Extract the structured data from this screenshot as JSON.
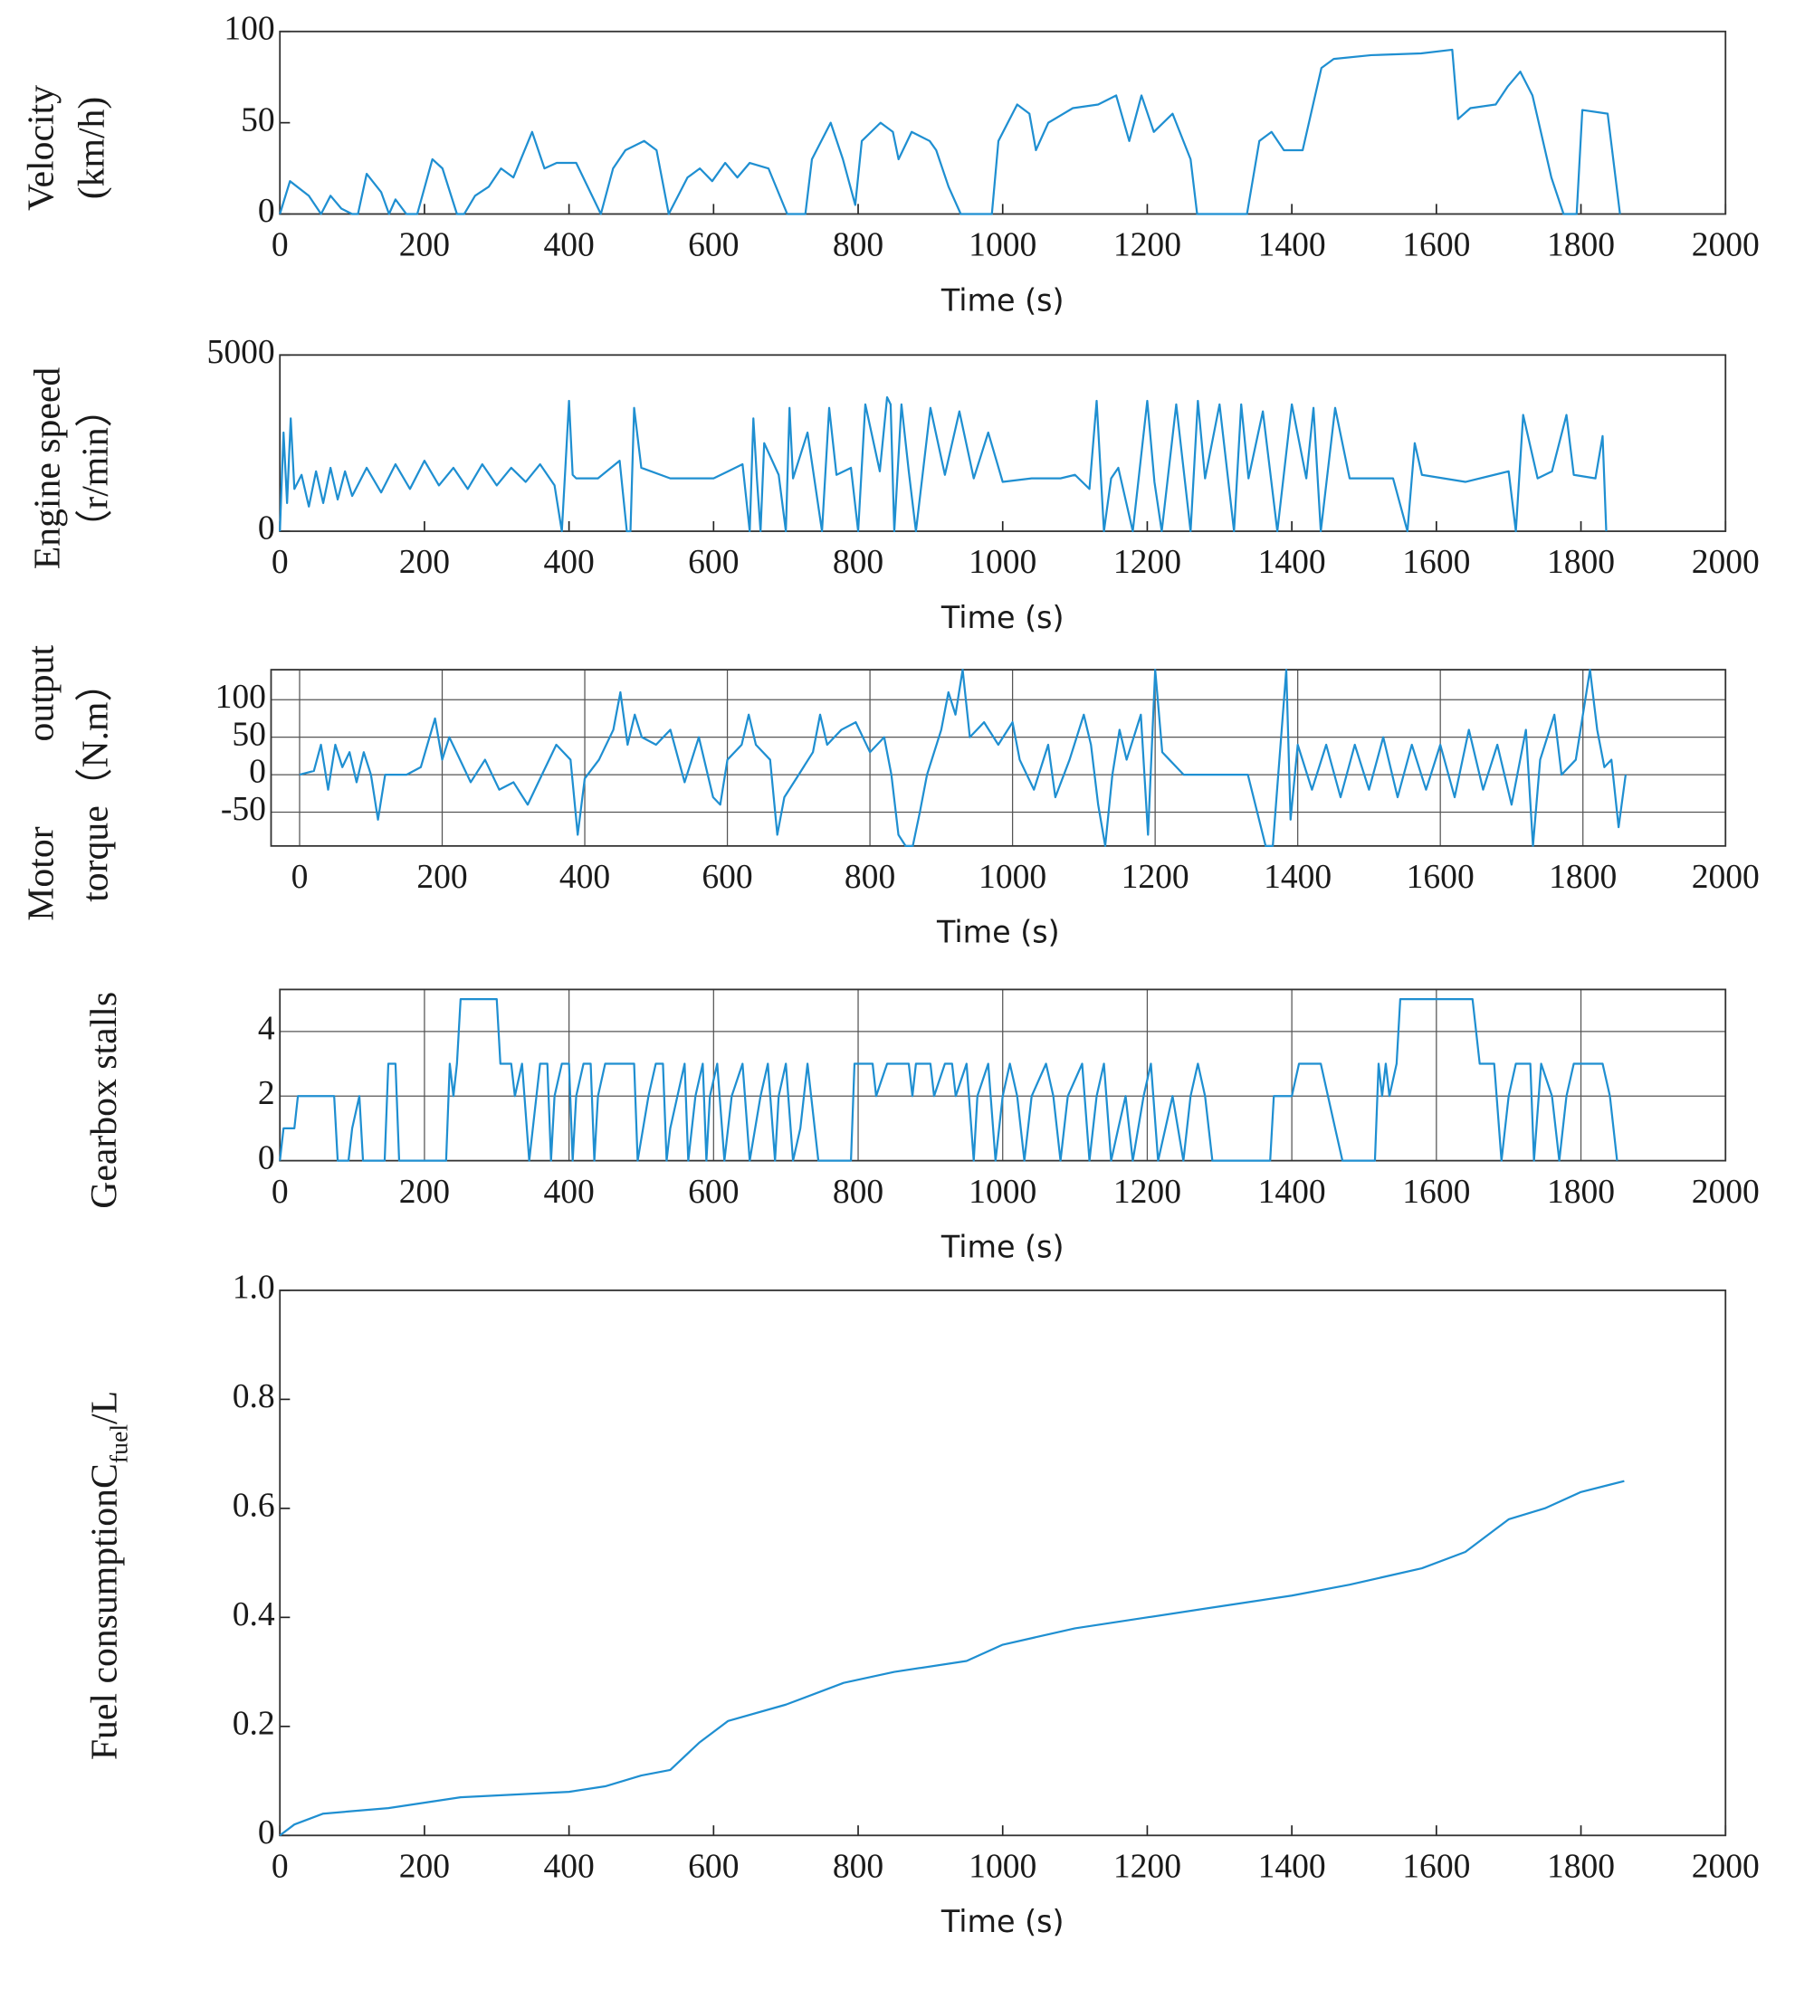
{
  "chart_data": [
    {
      "type": "line",
      "ylabel": [
        "Velocity",
        "(km/h)"
      ],
      "xlabel": "Time (s)",
      "color": "#1f8fd1",
      "grid": false,
      "xlim": [
        0,
        2000
      ],
      "xticks": [
        0,
        200,
        400,
        600,
        800,
        1000,
        1200,
        1400,
        1600,
        1800,
        2000
      ],
      "ylim": [
        0,
        100
      ],
      "yticks": [
        0,
        50,
        100
      ],
      "x": [
        0,
        14,
        40,
        57,
        70,
        85,
        100,
        108,
        120,
        140,
        151,
        160,
        175,
        190,
        211,
        225,
        245,
        255,
        270,
        289,
        306,
        323,
        349,
        366,
        383,
        410,
        444,
        461,
        478,
        504,
        521,
        538,
        564,
        581,
        598,
        616,
        633,
        650,
        676,
        702,
        727,
        736,
        762,
        779,
        796,
        805,
        831,
        848,
        856,
        874,
        899,
        908,
        925,
        942,
        985,
        994,
        1020,
        1037,
        1046,
        1063,
        1097,
        1132,
        1157,
        1175,
        1192,
        1209,
        1235,
        1260,
        1269,
        1338,
        1355,
        1372,
        1389,
        1415,
        1441,
        1458,
        1510,
        1579,
        1622,
        1630,
        1647,
        1682,
        1699,
        1716,
        1733,
        1759,
        1776,
        1794,
        1802,
        1837,
        1854
      ],
      "values": [
        0,
        18,
        10,
        0,
        10,
        3,
        0,
        0,
        22,
        12,
        0,
        8,
        0,
        0,
        30,
        25,
        0,
        0,
        10,
        15,
        25,
        20,
        45,
        25,
        28,
        28,
        0,
        25,
        35,
        40,
        35,
        0,
        20,
        25,
        18,
        28,
        20,
        28,
        25,
        0,
        0,
        30,
        50,
        30,
        5,
        40,
        50,
        45,
        30,
        45,
        40,
        35,
        15,
        0,
        0,
        40,
        60,
        55,
        35,
        50,
        58,
        60,
        65,
        40,
        65,
        45,
        55,
        30,
        0,
        0,
        40,
        45,
        35,
        35,
        80,
        85,
        87,
        88,
        90,
        52,
        58,
        60,
        70,
        78,
        65,
        20,
        0,
        0,
        57,
        55,
        0
      ]
    },
    {
      "type": "line",
      "ylabel": [
        "Engine speed",
        "（r/min）"
      ],
      "xlabel": "Time (s)",
      "color": "#1f8fd1",
      "grid": false,
      "xlim": [
        0,
        2000
      ],
      "xticks": [
        0,
        200,
        400,
        600,
        800,
        1000,
        1200,
        1400,
        1600,
        1800,
        2000
      ],
      "ylim": [
        0,
        5000
      ],
      "yticks": [
        0,
        5000
      ],
      "x": [
        0,
        5,
        10,
        15,
        20,
        30,
        40,
        50,
        60,
        70,
        80,
        90,
        100,
        120,
        140,
        160,
        180,
        200,
        220,
        240,
        260,
        280,
        300,
        320,
        340,
        360,
        380,
        390,
        395,
        400,
        405,
        410,
        440,
        470,
        480,
        485,
        490,
        500,
        540,
        600,
        620,
        640,
        650,
        655,
        660,
        665,
        670,
        690,
        700,
        705,
        710,
        730,
        750,
        760,
        770,
        790,
        800,
        810,
        830,
        840,
        845,
        850,
        860,
        870,
        880,
        900,
        920,
        940,
        960,
        980,
        1000,
        1040,
        1080,
        1100,
        1120,
        1130,
        1140,
        1150,
        1160,
        1180,
        1200,
        1210,
        1220,
        1240,
        1260,
        1270,
        1280,
        1300,
        1320,
        1330,
        1340,
        1360,
        1380,
        1400,
        1420,
        1430,
        1440,
        1460,
        1480,
        1540,
        1560,
        1570,
        1580,
        1640,
        1700,
        1710,
        1720,
        1740,
        1760,
        1780,
        1790,
        1820,
        1830,
        1835
      ],
      "values": [
        0,
        2800,
        800,
        3200,
        1200,
        1600,
        700,
        1700,
        800,
        1800,
        900,
        1700,
        1000,
        1800,
        1100,
        1900,
        1200,
        2000,
        1300,
        1800,
        1200,
        1900,
        1300,
        1800,
        1400,
        1900,
        1300,
        0,
        1800,
        3700,
        1600,
        1500,
        1500,
        2000,
        0,
        0,
        3500,
        1800,
        1500,
        1500,
        1700,
        1900,
        0,
        3200,
        1500,
        0,
        2500,
        1600,
        0,
        3500,
        1500,
        2800,
        0,
        3500,
        1600,
        1800,
        0,
        3600,
        1700,
        3800,
        3600,
        0,
        3600,
        1700,
        0,
        3500,
        1600,
        3400,
        1500,
        2800,
        1400,
        1500,
        1500,
        1600,
        1200,
        3700,
        0,
        1500,
        1800,
        0,
        3700,
        1400,
        0,
        3600,
        0,
        3700,
        1500,
        3600,
        0,
        3600,
        1500,
        3400,
        0,
        3600,
        1500,
        3500,
        0,
        3500,
        1500,
        1500,
        0,
        2500,
        1600,
        1400,
        1700,
        0,
        3300,
        1500,
        1700,
        3300,
        1600,
        1500,
        2700,
        0
      ]
    },
    {
      "type": "line",
      "ylabel": [
        "Motor output",
        "torque（N.m）"
      ],
      "xlabel": "Time (s)",
      "color": "#1f8fd1",
      "grid": true,
      "xlim": [
        -40,
        2000
      ],
      "xticks": [
        0,
        200,
        400,
        600,
        800,
        1000,
        1200,
        1400,
        1600,
        1800,
        2000
      ],
      "ylim": [
        -95,
        140
      ],
      "yticks": [
        -50,
        0,
        50,
        100
      ],
      "x": [
        0,
        20,
        30,
        40,
        50,
        60,
        70,
        80,
        90,
        100,
        110,
        120,
        150,
        170,
        190,
        200,
        210,
        220,
        240,
        260,
        280,
        300,
        320,
        340,
        360,
        380,
        390,
        400,
        420,
        440,
        450,
        460,
        470,
        480,
        500,
        520,
        540,
        560,
        580,
        590,
        600,
        620,
        630,
        640,
        660,
        670,
        680,
        700,
        720,
        730,
        740,
        760,
        780,
        800,
        820,
        830,
        840,
        850,
        860,
        870,
        880,
        900,
        910,
        920,
        930,
        940,
        960,
        980,
        1000,
        1010,
        1030,
        1050,
        1060,
        1080,
        1100,
        1110,
        1120,
        1130,
        1140,
        1150,
        1160,
        1180,
        1190,
        1200,
        1210,
        1220,
        1230,
        1240,
        1280,
        1330,
        1355,
        1365,
        1384,
        1390,
        1400,
        1420,
        1440,
        1460,
        1480,
        1500,
        1520,
        1540,
        1560,
        1580,
        1600,
        1620,
        1640,
        1660,
        1680,
        1700,
        1720,
        1730,
        1740,
        1760,
        1770,
        1790,
        1810,
        1820,
        1830,
        1840,
        1850,
        1860
      ],
      "values": [
        0,
        5,
        40,
        -20,
        40,
        10,
        30,
        -10,
        30,
        0,
        -60,
        0,
        0,
        10,
        75,
        20,
        50,
        30,
        -10,
        20,
        -20,
        -10,
        -40,
        0,
        40,
        20,
        -80,
        -5,
        20,
        60,
        110,
        40,
        80,
        50,
        40,
        60,
        -10,
        50,
        -30,
        -40,
        20,
        40,
        80,
        40,
        20,
        -80,
        -30,
        0,
        30,
        80,
        40,
        60,
        70,
        30,
        50,
        0,
        -80,
        -95,
        -95,
        -50,
        0,
        60,
        110,
        80,
        140,
        50,
        70,
        40,
        70,
        20,
        -20,
        40,
        -30,
        20,
        80,
        40,
        -40,
        -95,
        0,
        60,
        20,
        80,
        -80,
        140,
        30,
        20,
        10,
        0,
        0,
        0,
        -95,
        -95,
        140,
        -60,
        40,
        -20,
        40,
        -30,
        40,
        -20,
        50,
        -30,
        40,
        -20,
        40,
        -30,
        60,
        -20,
        40,
        -40,
        60,
        -95,
        20,
        80,
        0,
        20,
        140,
        60,
        10,
        20,
        -70,
        0
      ]
    },
    {
      "type": "line",
      "ylabel": [
        "Gearbox stalls"
      ],
      "xlabel": "Time (s)",
      "color": "#1f8fd1",
      "grid": true,
      "xlim": [
        0,
        2000
      ],
      "xticks": [
        0,
        200,
        400,
        600,
        800,
        1000,
        1200,
        1400,
        1600,
        1800,
        2000
      ],
      "ylim": [
        0,
        5.3
      ],
      "yticks": [
        0,
        2,
        4
      ],
      "x": [
        0,
        5,
        20,
        25,
        75,
        80,
        95,
        100,
        110,
        115,
        145,
        150,
        160,
        165,
        230,
        235,
        240,
        245,
        250,
        300,
        305,
        320,
        325,
        335,
        345,
        360,
        370,
        375,
        380,
        390,
        400,
        405,
        410,
        420,
        430,
        435,
        440,
        450,
        490,
        495,
        510,
        520,
        530,
        535,
        540,
        560,
        565,
        575,
        585,
        590,
        595,
        605,
        615,
        625,
        640,
        650,
        665,
        675,
        685,
        690,
        700,
        710,
        720,
        730,
        745,
        790,
        795,
        820,
        825,
        840,
        870,
        875,
        880,
        900,
        905,
        920,
        930,
        935,
        950,
        960,
        965,
        980,
        990,
        1000,
        1010,
        1020,
        1030,
        1040,
        1060,
        1070,
        1080,
        1090,
        1110,
        1120,
        1130,
        1140,
        1150,
        1160,
        1170,
        1180,
        1195,
        1205,
        1215,
        1225,
        1235,
        1250,
        1260,
        1270,
        1280,
        1290,
        1370,
        1375,
        1400,
        1410,
        1440,
        1450,
        1460,
        1470,
        1515,
        1520,
        1525,
        1530,
        1535,
        1545,
        1550,
        1650,
        1660,
        1680,
        1690,
        1700,
        1710,
        1730,
        1735,
        1745,
        1760,
        1770,
        1780,
        1790,
        1830,
        1840,
        1850
      ],
      "values": [
        0,
        1,
        1,
        2,
        2,
        0,
        0,
        1,
        2,
        0,
        0,
        3,
        3,
        0,
        0,
        3,
        2,
        3,
        5,
        5,
        3,
        3,
        2,
        3,
        0,
        3,
        3,
        0,
        2,
        3,
        3,
        0,
        2,
        3,
        3,
        0,
        2,
        3,
        3,
        0,
        2,
        3,
        3,
        0,
        1,
        3,
        0,
        2,
        3,
        0,
        2,
        3,
        0,
        2,
        3,
        0,
        2,
        3,
        0,
        2,
        3,
        0,
        1,
        3,
        0,
        0,
        3,
        3,
        2,
        3,
        3,
        2,
        3,
        3,
        2,
        3,
        3,
        2,
        3,
        0,
        2,
        3,
        0,
        2,
        3,
        2,
        0,
        2,
        3,
        2,
        0,
        2,
        3,
        0,
        2,
        3,
        0,
        1,
        2,
        0,
        2,
        3,
        0,
        1,
        2,
        0,
        2,
        3,
        2,
        0,
        0,
        2,
        2,
        3,
        3,
        2,
        1,
        0,
        0,
        3,
        2,
        3,
        2,
        3,
        5,
        5,
        3,
        3,
        0,
        2,
        3,
        3,
        0,
        3,
        2,
        0,
        2,
        3,
        3,
        2,
        0
      ]
    },
    {
      "type": "line",
      "ylabel": [
        "Fuel consumptionC"
      ],
      "ylabel_sub": "fuel",
      "ylabel_unit": "/L",
      "xlabel": "Time (s)",
      "color": "#1f8fd1",
      "grid": false,
      "xlim": [
        0,
        2000
      ],
      "xticks": [
        0,
        200,
        400,
        600,
        800,
        1000,
        1200,
        1400,
        1600,
        1800,
        2000
      ],
      "ylim": [
        0,
        1
      ],
      "yticks": [
        0,
        0.2,
        0.4,
        0.6,
        0.8,
        {
          "value": 1,
          "label": "1.0"
        }
      ],
      "x": [
        0,
        20,
        60,
        150,
        250,
        400,
        450,
        500,
        540,
        580,
        620,
        700,
        780,
        850,
        950,
        1000,
        1100,
        1200,
        1300,
        1400,
        1480,
        1580,
        1640,
        1700,
        1750,
        1800,
        1860
      ],
      "values": [
        0,
        0.02,
        0.04,
        0.05,
        0.07,
        0.08,
        0.09,
        0.11,
        0.12,
        0.17,
        0.21,
        0.24,
        0.28,
        0.3,
        0.32,
        0.35,
        0.38,
        0.4,
        0.42,
        0.44,
        0.46,
        0.49,
        0.52,
        0.58,
        0.6,
        0.63,
        0.65
      ]
    }
  ]
}
